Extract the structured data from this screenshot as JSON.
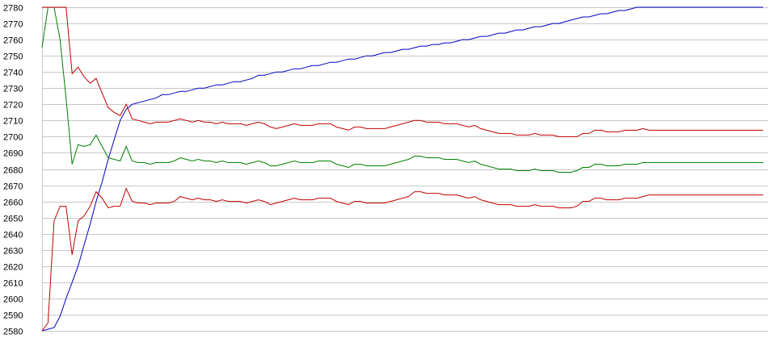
{
  "chart_data": {
    "type": "line",
    "title": "",
    "xlabel": "",
    "ylabel": "",
    "ylim": [
      2580,
      2780
    ],
    "y_ticks": [
      "2580",
      "2590",
      "2600",
      "2610",
      "2620",
      "2630",
      "2640",
      "2650",
      "2660",
      "2670",
      "2680",
      "2690",
      "2700",
      "2710",
      "2720",
      "2730",
      "2740",
      "2750",
      "2760",
      "2770",
      "2780"
    ],
    "grid": true,
    "legend": "none",
    "x": [
      0,
      1,
      2,
      3,
      4,
      5,
      6,
      7,
      8,
      9,
      10,
      11,
      12,
      13,
      14,
      15,
      16,
      17,
      18,
      19,
      20,
      21,
      22,
      23,
      24,
      25,
      26,
      27,
      28,
      29,
      30,
      31,
      32,
      33,
      34,
      35,
      36,
      37,
      38,
      39,
      40,
      41,
      42,
      43,
      44,
      45,
      46,
      47,
      48,
      49,
      50,
      51,
      52,
      53,
      54,
      55,
      56,
      57,
      58,
      59,
      60,
      61,
      62,
      63,
      64,
      65,
      66,
      67,
      68,
      69,
      70,
      71,
      72,
      73,
      74,
      75,
      76,
      77,
      78,
      79,
      80,
      81,
      82,
      83,
      84,
      85,
      86,
      87,
      88,
      89,
      90,
      91,
      92,
      93,
      94,
      95,
      96,
      97,
      98,
      99,
      100,
      101,
      102,
      103,
      104,
      105,
      106,
      107,
      108,
      109,
      110,
      111,
      112,
      113,
      114,
      115,
      116,
      117,
      118,
      119,
      120
    ],
    "series": [
      {
        "color": "#0000c0",
        "values": [
          2580,
          2581,
          2582,
          2589,
          2600,
          2610,
          2620,
          2633,
          2646,
          2660,
          2672,
          2686,
          2698,
          2710,
          2717,
          2720,
          2721,
          2722,
          2723,
          2724,
          2726,
          2726,
          2727,
          2728,
          2728,
          2729,
          2730,
          2730,
          2731,
          2732,
          2732,
          2733,
          2734,
          2734,
          2735,
          2736,
          2738,
          2738,
          2739,
          2740,
          2740,
          2741,
          2742,
          2742,
          2743,
          2744,
          2744,
          2745,
          2746,
          2746,
          2747,
          2748,
          2748,
          2749,
          2750,
          2750,
          2751,
          2752,
          2752,
          2753,
          2754,
          2754,
          2755,
          2756,
          2756,
          2757,
          2757,
          2758,
          2758,
          2759,
          2760,
          2760,
          2761,
          2762,
          2762,
          2763,
          2764,
          2764,
          2765,
          2766,
          2766,
          2767,
          2768,
          2768,
          2769,
          2770,
          2770,
          2771,
          2772,
          2773,
          2774,
          2774,
          2775,
          2776,
          2776,
          2777,
          2778,
          2778,
          2779,
          2780,
          2780,
          2780,
          2780,
          2780,
          2780,
          2780,
          2780,
          2780,
          2780,
          2780,
          2780,
          2780,
          2780,
          2780,
          2780,
          2780,
          2780,
          2780,
          2780,
          2780,
          2780
        ]
      },
      {
        "color": "#008000",
        "values": [
          2755,
          2780,
          2780,
          2760,
          2724,
          2683,
          2695,
          2694,
          2695,
          2701,
          2694,
          2687,
          2686,
          2685,
          2694,
          2685,
          2684,
          2684,
          2683,
          2684,
          2684,
          2684,
          2685,
          2687,
          2686,
          2685,
          2686,
          2685,
          2685,
          2684,
          2685,
          2684,
          2684,
          2684,
          2683,
          2684,
          2685,
          2684,
          2682,
          2682,
          2683,
          2684,
          2685,
          2684,
          2684,
          2684,
          2685,
          2685,
          2685,
          2683,
          2682,
          2681,
          2683,
          2683,
          2682,
          2682,
          2682,
          2682,
          2683,
          2684,
          2685,
          2686,
          2688,
          2688,
          2687,
          2687,
          2687,
          2686,
          2686,
          2686,
          2685,
          2684,
          2685,
          2683,
          2682,
          2681,
          2680,
          2680,
          2680,
          2679,
          2679,
          2679,
          2680,
          2679,
          2679,
          2679,
          2678,
          2678,
          2678,
          2679,
          2681,
          2681,
          2683,
          2683,
          2682,
          2682,
          2682,
          2683,
          2683,
          2683,
          2684,
          2684,
          2684,
          2684,
          2684,
          2684,
          2684,
          2684,
          2684,
          2684,
          2684,
          2684,
          2684,
          2684,
          2684,
          2684,
          2684,
          2684,
          2684,
          2684,
          2684
        ]
      },
      {
        "color": "#c00000",
        "values": [
          2780,
          2780,
          2780,
          2780,
          2780,
          2739,
          2743,
          2737,
          2733,
          2736,
          2727,
          2718,
          2715,
          2713,
          2720,
          2711,
          2710,
          2709,
          2708,
          2709,
          2709,
          2709,
          2710,
          2711,
          2710,
          2709,
          2710,
          2709,
          2709,
          2708,
          2709,
          2708,
          2708,
          2708,
          2707,
          2708,
          2709,
          2708,
          2706,
          2705,
          2706,
          2707,
          2708,
          2707,
          2707,
          2707,
          2708,
          2708,
          2708,
          2706,
          2705,
          2704,
          2706,
          2706,
          2705,
          2705,
          2705,
          2705,
          2706,
          2707,
          2708,
          2709,
          2710,
          2710,
          2709,
          2709,
          2709,
          2708,
          2708,
          2708,
          2707,
          2706,
          2707,
          2705,
          2704,
          2703,
          2702,
          2702,
          2702,
          2701,
          2701,
          2701,
          2702,
          2701,
          2701,
          2701,
          2700,
          2700,
          2700,
          2700,
          2702,
          2702,
          2704,
          2704,
          2703,
          2703,
          2703,
          2704,
          2704,
          2704,
          2705,
          2704,
          2704,
          2704,
          2704,
          2704,
          2704,
          2704,
          2704,
          2704,
          2704,
          2704,
          2704,
          2704,
          2704,
          2704,
          2704,
          2704,
          2704,
          2704,
          2704
        ]
      },
      {
        "color": "#c00000",
        "values": [
          2580,
          2585,
          2648,
          2657,
          2657,
          2627,
          2648,
          2651,
          2657,
          2666,
          2662,
          2656,
          2657,
          2657,
          2668,
          2660,
          2659,
          2659,
          2658,
          2659,
          2659,
          2659,
          2660,
          2663,
          2662,
          2661,
          2662,
          2661,
          2661,
          2660,
          2661,
          2660,
          2660,
          2660,
          2659,
          2660,
          2661,
          2660,
          2658,
          2659,
          2660,
          2661,
          2662,
          2661,
          2661,
          2661,
          2662,
          2662,
          2662,
          2660,
          2659,
          2658,
          2660,
          2660,
          2659,
          2659,
          2659,
          2659,
          2660,
          2661,
          2662,
          2663,
          2666,
          2666,
          2665,
          2665,
          2665,
          2664,
          2664,
          2664,
          2663,
          2662,
          2663,
          2661,
          2660,
          2659,
          2658,
          2658,
          2658,
          2657,
          2657,
          2657,
          2658,
          2657,
          2657,
          2657,
          2656,
          2656,
          2656,
          2657,
          2660,
          2660,
          2662,
          2662,
          2661,
          2661,
          2661,
          2662,
          2662,
          2662,
          2663,
          2664,
          2664,
          2664,
          2664,
          2664,
          2664,
          2664,
          2664,
          2664,
          2664,
          2664,
          2664,
          2664,
          2664,
          2664,
          2664,
          2664,
          2664,
          2664,
          2664
        ]
      }
    ]
  }
}
